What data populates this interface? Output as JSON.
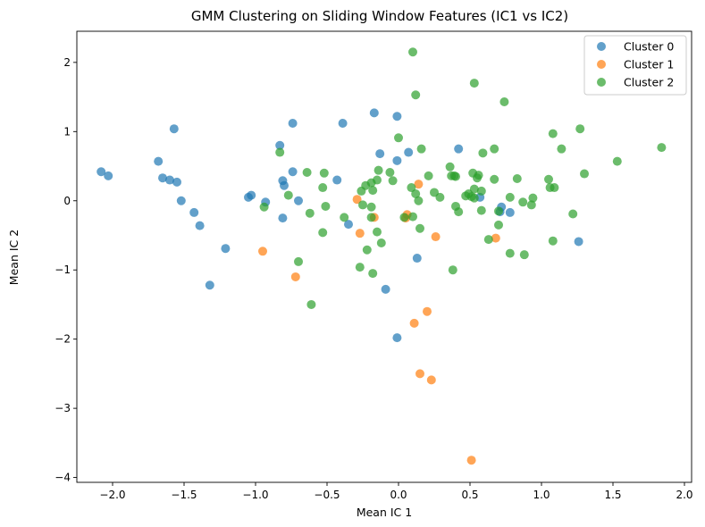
{
  "chart_data": {
    "type": "scatter",
    "title": "GMM Clustering on Sliding Window Features (IC1 vs IC2)",
    "xlabel": "Mean IC 1",
    "ylabel": "Mean IC 2",
    "xlim": [
      -2.25,
      2.05
    ],
    "ylim": [
      -4.07,
      2.45
    ],
    "xticks": [
      -2.0,
      -1.5,
      -1.0,
      -0.5,
      0.0,
      0.5,
      1.0,
      1.5,
      2.0
    ],
    "yticks": [
      -4,
      -3,
      -2,
      -1,
      0,
      1,
      2
    ],
    "xtick_labels": [
      "−2.0",
      "−1.5",
      "−1.0",
      "−0.5",
      "0.0",
      "0.5",
      "1.0",
      "1.5",
      "2.0"
    ],
    "ytick_labels": [
      "−4",
      "−3",
      "−2",
      "−1",
      "0",
      "1",
      "2"
    ],
    "grid": false,
    "legend": "top-right",
    "series": [
      {
        "name": "Cluster 0",
        "color": "#1f77b4",
        "points": [
          [
            -2.08,
            0.42
          ],
          [
            -2.03,
            0.36
          ],
          [
            -1.68,
            0.57
          ],
          [
            -1.65,
            0.33
          ],
          [
            -1.6,
            0.3
          ],
          [
            -1.57,
            1.04
          ],
          [
            -1.55,
            0.27
          ],
          [
            -1.52,
            0.0
          ],
          [
            -1.43,
            -0.17
          ],
          [
            -1.39,
            -0.36
          ],
          [
            -1.32,
            -1.22
          ],
          [
            -1.21,
            -0.69
          ],
          [
            -1.05,
            0.05
          ],
          [
            -1.03,
            0.08
          ],
          [
            -0.93,
            -0.02
          ],
          [
            -0.83,
            0.8
          ],
          [
            -0.81,
            0.29
          ],
          [
            -0.8,
            0.22
          ],
          [
            -0.81,
            -0.25
          ],
          [
            -0.74,
            1.12
          ],
          [
            -0.74,
            0.42
          ],
          [
            -0.7,
            0.0
          ],
          [
            -0.43,
            0.3
          ],
          [
            -0.39,
            1.12
          ],
          [
            -0.35,
            -0.34
          ],
          [
            -0.17,
            1.27
          ],
          [
            -0.13,
            0.68
          ],
          [
            -0.09,
            -1.28
          ],
          [
            -0.01,
            1.22
          ],
          [
            -0.01,
            0.58
          ],
          [
            -0.01,
            -1.98
          ],
          [
            0.07,
            0.7
          ],
          [
            0.13,
            -0.83
          ],
          [
            0.42,
            0.75
          ],
          [
            0.57,
            0.05
          ],
          [
            0.71,
            -0.16
          ],
          [
            0.72,
            -0.09
          ],
          [
            0.78,
            -0.17
          ],
          [
            1.26,
            -0.59
          ]
        ]
      },
      {
        "name": "Cluster 1",
        "color": "#ff7f0e",
        "points": [
          [
            -0.95,
            -0.73
          ],
          [
            -0.72,
            -1.1
          ],
          [
            -0.29,
            0.02
          ],
          [
            -0.27,
            -0.47
          ],
          [
            -0.17,
            -0.24
          ],
          [
            0.05,
            -0.25
          ],
          [
            0.06,
            -0.2
          ],
          [
            0.11,
            -1.77
          ],
          [
            0.14,
            0.24
          ],
          [
            0.15,
            -2.5
          ],
          [
            0.2,
            -1.6
          ],
          [
            0.23,
            -2.59
          ],
          [
            0.26,
            -0.52
          ],
          [
            0.51,
            -3.75
          ],
          [
            0.68,
            -0.54
          ]
        ]
      },
      {
        "name": "Cluster 2",
        "color": "#2ca02c",
        "points": [
          [
            0.1,
            2.15
          ],
          [
            0.53,
            1.7
          ],
          [
            0.12,
            1.53
          ],
          [
            0.74,
            1.43
          ],
          [
            1.27,
            1.04
          ],
          [
            1.08,
            0.97
          ],
          [
            0.0,
            0.91
          ],
          [
            1.84,
            0.77
          ],
          [
            0.16,
            0.75
          ],
          [
            0.67,
            0.75
          ],
          [
            1.14,
            0.75
          ],
          [
            -0.83,
            0.7
          ],
          [
            0.59,
            0.69
          ],
          [
            1.53,
            0.57
          ],
          [
            0.36,
            0.49
          ],
          [
            -0.14,
            0.44
          ],
          [
            -0.06,
            0.41
          ],
          [
            -0.52,
            0.4
          ],
          [
            -0.64,
            0.41
          ],
          [
            0.52,
            0.4
          ],
          [
            1.3,
            0.39
          ],
          [
            0.56,
            0.37
          ],
          [
            0.21,
            0.36
          ],
          [
            0.4,
            0.35
          ],
          [
            0.39,
            0.36
          ],
          [
            0.55,
            0.33
          ],
          [
            0.67,
            0.31
          ],
          [
            0.83,
            0.32
          ],
          [
            1.05,
            0.31
          ],
          [
            -0.04,
            0.29
          ],
          [
            -0.15,
            0.3
          ],
          [
            -0.19,
            0.26
          ],
          [
            -0.23,
            0.22
          ],
          [
            0.09,
            0.19
          ],
          [
            1.06,
            0.19
          ],
          [
            1.09,
            0.19
          ],
          [
            -0.53,
            0.19
          ],
          [
            0.53,
            0.17
          ],
          [
            -0.18,
            0.15
          ],
          [
            -0.26,
            0.14
          ],
          [
            0.58,
            0.14
          ],
          [
            0.25,
            0.12
          ],
          [
            -0.77,
            0.08
          ],
          [
            0.47,
            0.07
          ],
          [
            0.51,
            0.06
          ],
          [
            0.29,
            0.05
          ],
          [
            0.53,
            0.04
          ],
          [
            0.78,
            0.05
          ],
          [
            0.94,
            0.04
          ],
          [
            0.14,
            0.0
          ],
          [
            -0.25,
            -0.06
          ],
          [
            0.93,
            -0.06
          ],
          [
            0.4,
            -0.08
          ],
          [
            -0.19,
            -0.09
          ],
          [
            0.87,
            -0.02
          ],
          [
            -0.51,
            -0.08
          ],
          [
            -0.94,
            -0.09
          ],
          [
            0.42,
            -0.16
          ],
          [
            0.58,
            -0.14
          ],
          [
            0.7,
            -0.15
          ],
          [
            -0.62,
            -0.18
          ],
          [
            1.22,
            -0.19
          ],
          [
            -0.38,
            -0.24
          ],
          [
            -0.19,
            -0.24
          ],
          [
            0.04,
            -0.24
          ],
          [
            0.1,
            -0.23
          ],
          [
            0.7,
            -0.35
          ],
          [
            0.15,
            -0.4
          ],
          [
            -0.15,
            -0.45
          ],
          [
            -0.53,
            -0.46
          ],
          [
            0.63,
            -0.56
          ],
          [
            -0.12,
            -0.61
          ],
          [
            1.08,
            -0.58
          ],
          [
            -0.22,
            -0.71
          ],
          [
            0.78,
            -0.76
          ],
          [
            0.88,
            -0.78
          ],
          [
            -0.7,
            -0.88
          ],
          [
            -0.27,
            -0.96
          ],
          [
            0.38,
            -1.0
          ],
          [
            -0.18,
            -1.05
          ],
          [
            -0.61,
            -1.5
          ],
          [
            0.49,
            0.1
          ],
          [
            0.37,
            0.36
          ],
          [
            0.12,
            0.1
          ]
        ]
      }
    ]
  }
}
